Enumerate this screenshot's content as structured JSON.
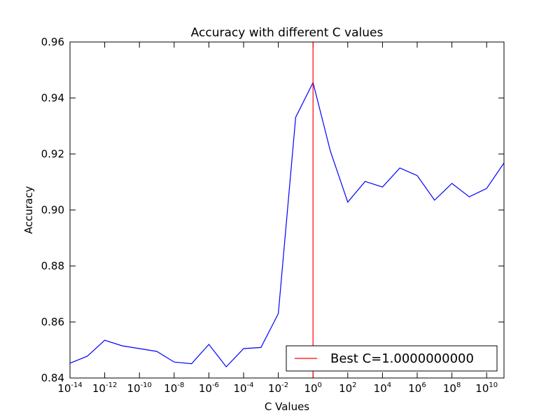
{
  "chart_data": {
    "type": "line",
    "title": "Accuracy with different C values",
    "xlabel": "C Values",
    "ylabel": "Accuracy",
    "xscale": "log",
    "xlim_exp": [
      -14,
      11
    ],
    "ylim": [
      0.84,
      0.96
    ],
    "x_ticks": [
      {
        "base": "10",
        "exp": "-14",
        "value_exp": -14
      },
      {
        "base": "10",
        "exp": "-12",
        "value_exp": -12
      },
      {
        "base": "10",
        "exp": "-10",
        "value_exp": -10
      },
      {
        "base": "10",
        "exp": "-8",
        "value_exp": -8
      },
      {
        "base": "10",
        "exp": "-6",
        "value_exp": -6
      },
      {
        "base": "10",
        "exp": "-4",
        "value_exp": -4
      },
      {
        "base": "10",
        "exp": "-2",
        "value_exp": -2
      },
      {
        "base": "10",
        "exp": "0",
        "value_exp": 0
      },
      {
        "base": "10",
        "exp": "2",
        "value_exp": 2
      },
      {
        "base": "10",
        "exp": "4",
        "value_exp": 4
      },
      {
        "base": "10",
        "exp": "6",
        "value_exp": 6
      },
      {
        "base": "10",
        "exp": "8",
        "value_exp": 8
      },
      {
        "base": "10",
        "exp": "10",
        "value_exp": 10
      }
    ],
    "y_ticks": [
      "0.84",
      "0.86",
      "0.88",
      "0.90",
      "0.92",
      "0.94",
      "0.96"
    ],
    "series": [
      {
        "color": "#0000ff",
        "x": [
          1e-14,
          1e-13,
          1e-12,
          1e-11,
          1e-10,
          1e-09,
          1e-08,
          1e-07,
          1e-06,
          1e-05,
          0.0001,
          0.001,
          0.01,
          0.1,
          1,
          10,
          100,
          1000,
          10000,
          100000,
          1000000,
          10000000,
          100000000,
          1000000000,
          10000000000,
          100000000000
        ],
        "y": [
          0.8453,
          0.8478,
          0.8535,
          0.8515,
          0.8505,
          0.8495,
          0.8457,
          0.8451,
          0.852,
          0.844,
          0.8505,
          0.8509,
          0.863,
          0.9331,
          0.9455,
          0.921,
          0.9028,
          0.9102,
          0.9082,
          0.915,
          0.9123,
          0.9035,
          0.9095,
          0.9047,
          0.9077,
          0.9168
        ]
      }
    ],
    "vline": {
      "x": 1,
      "color": "#ff0000"
    },
    "legend": {
      "position": "lower-right",
      "entries": [
        {
          "label": "Best C=1.0000000000",
          "color": "#ff0000"
        }
      ]
    },
    "grid": false
  }
}
